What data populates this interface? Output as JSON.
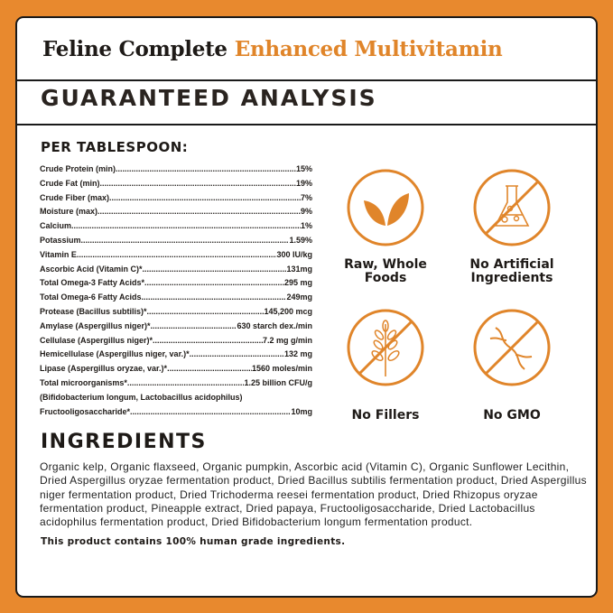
{
  "title": {
    "main": "Feline Complete",
    "accent": "Enhanced Multivitamin"
  },
  "section_title": "GUARANTEED ANALYSIS",
  "serving": "PER TABLESPOON:",
  "analysis": [
    {
      "label": "Crude Protein (min)",
      "value": "15%"
    },
    {
      "label": "Crude Fat (min)",
      "value": "19%"
    },
    {
      "label": "Crude Fiber (max)",
      "value": "7%"
    },
    {
      "label": "Moisture (max)",
      "value": "9%"
    },
    {
      "label": "Calcium",
      "value": "1%"
    },
    {
      "label": "Potassium",
      "value": "1.59%"
    },
    {
      "label": "Vitamin E",
      "value": "300 IU/kg"
    },
    {
      "label": "Ascorbic Acid (Vitamin C)*",
      "value": "131mg"
    },
    {
      "label": "Total Omega-3 Fatty Acids*",
      "value": "295 mg"
    },
    {
      "label": "Total Omega-6 Fatty Acids",
      "value": "249mg"
    },
    {
      "label": "Protease (Bacillus subtilis)*",
      "value": "145,200 mcg"
    },
    {
      "label": "Amylase (Aspergillus niger)*",
      "value": "630 starch dex./min"
    },
    {
      "label": "Cellulase (Aspergillus niger)*",
      "value": "7.2 mg g/min"
    },
    {
      "label": "Hemicellulase (Aspergillus niger, var.)*",
      "value": "132 mg"
    },
    {
      "label": "Lipase (Aspergillus oryzae, var.)*",
      "value": "1560 moles/min"
    },
    {
      "label": "Total microorganisms*",
      "value": "1.25 billion CFU/g"
    },
    {
      "label": "(Bifidobacterium longum, Lactobacillus acidophilus)",
      "value": ""
    },
    {
      "label": "Fructooligosaccharide*",
      "value": "10mg"
    }
  ],
  "badges": [
    {
      "label1": "Raw, Whole",
      "label2": "Foods",
      "icon": "leaf-icon"
    },
    {
      "label1": "No Artificial",
      "label2": "Ingredients",
      "icon": "flask-crossed-icon"
    },
    {
      "label1": "No Fillers",
      "label2": "",
      "icon": "wheat-crossed-icon"
    },
    {
      "label1": "No GMO",
      "label2": "",
      "icon": "dna-crossed-icon"
    }
  ],
  "ingredients_title": "INGREDIENTS",
  "ingredients": "Organic kelp, Organic flaxseed, Organic pumpkin, Ascorbic acid (Vitamin C), Organic Sunflower Lecithin, Dried Aspergillus oryzae fermentation product, Dried Bacillus subtilis fermentation product, Dried Aspergillus niger fermentation product, Dried Trichoderma reesei fermentation product, Dried Rhizopus oryzae fermentation product, Pineapple extract, Dried papaya, Fructooligosaccharide, Dried Lactobacillus acidophilus fermentation product, Dried Bifidobacterium longum fermentation product.",
  "footer": "This product contains 100% human grade ingredients.",
  "colors": {
    "accent": "#e8892e",
    "border": "#1a1a1a",
    "text": "#1e1a17"
  }
}
